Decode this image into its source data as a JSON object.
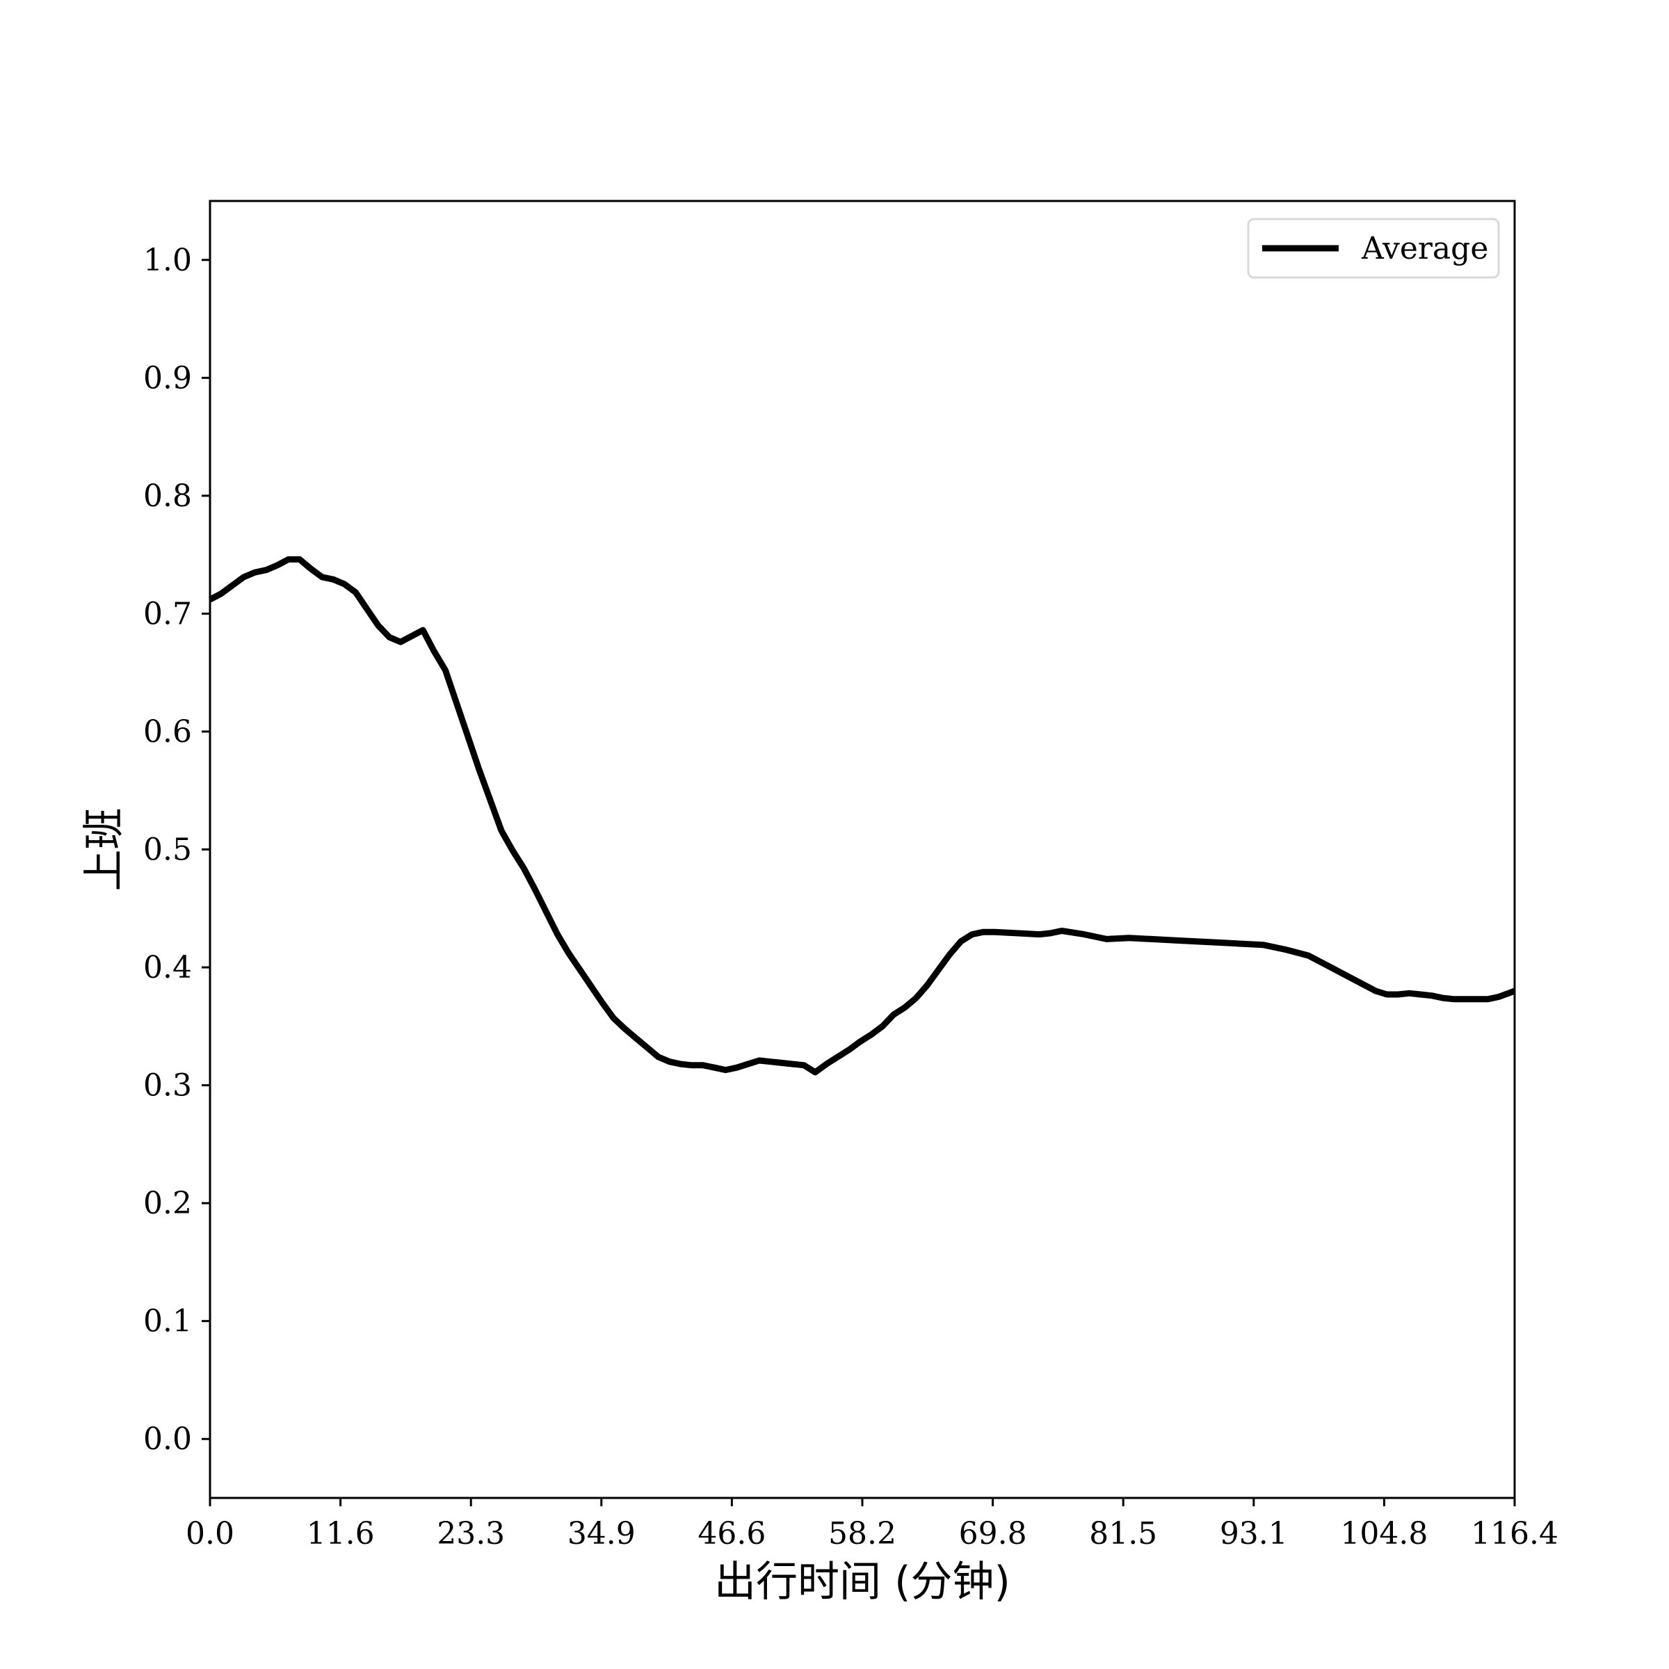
{
  "chart_data": {
    "type": "line",
    "title": "",
    "xlabel": "出行时间 (分钟)",
    "ylabel": "上班",
    "xlim": [
      0.0,
      116.4
    ],
    "ylim": [
      -0.05,
      1.05
    ],
    "xticks": [
      "0.0",
      "11.6",
      "23.3",
      "34.9",
      "46.6",
      "58.2",
      "69.8",
      "81.5",
      "93.1",
      "104.8",
      "116.4"
    ],
    "xtick_values": [
      0.0,
      11.64,
      23.28,
      34.92,
      46.56,
      58.2,
      69.84,
      81.48,
      93.12,
      104.76,
      116.4
    ],
    "yticks": [
      "0.0",
      "0.1",
      "0.2",
      "0.3",
      "0.4",
      "0.5",
      "0.6",
      "0.7",
      "0.8",
      "0.9",
      "1.0"
    ],
    "ytick_values": [
      0.0,
      0.1,
      0.2,
      0.3,
      0.4,
      0.5,
      0.6,
      0.7,
      0.8,
      0.9,
      1.0
    ],
    "grid": false,
    "legend": {
      "position": "top-right"
    },
    "series": [
      {
        "name": "Average",
        "color": "#000000",
        "x": [
          0.0,
          1.0,
          2.0,
          3.0,
          4.0,
          5.0,
          6.0,
          7.0,
          8.0,
          9.0,
          10.0,
          11.0,
          12.0,
          13.0,
          14.0,
          15.0,
          16.0,
          17.0,
          18.0,
          19.0,
          20.0,
          21.0,
          22.0,
          23.0,
          24.0,
          25.0,
          26.0,
          27.0,
          28.0,
          29.0,
          30.0,
          31.0,
          32.0,
          33.0,
          34.0,
          35.0,
          36.0,
          37.0,
          38.0,
          39.0,
          40.0,
          41.0,
          42.0,
          43.0,
          44.0,
          45.0,
          46.0,
          47.0,
          48.0,
          49.0,
          50.0,
          51.0,
          52.0,
          53.0,
          54.0,
          55.0,
          56.0,
          57.0,
          58.0,
          59.0,
          60.0,
          61.0,
          62.0,
          63.0,
          64.0,
          65.0,
          66.0,
          67.0,
          68.0,
          69.0,
          70.0,
          72.0,
          74.0,
          75.0,
          76.0,
          78.0,
          80.0,
          82.0,
          84.0,
          86.0,
          88.0,
          90.0,
          92.0,
          94.0,
          96.0,
          98.0,
          100.0,
          102.0,
          104.0,
          105.0,
          106.0,
          107.0,
          108.0,
          109.0,
          110.0,
          111.0,
          112.0,
          113.0,
          114.0,
          115.0,
          116.4
        ],
        "y": [
          0.712,
          0.717,
          0.724,
          0.731,
          0.735,
          0.737,
          0.741,
          0.746,
          0.746,
          0.738,
          0.731,
          0.729,
          0.725,
          0.718,
          0.704,
          0.69,
          0.68,
          0.676,
          0.681,
          0.686,
          0.668,
          0.652,
          0.624,
          0.596,
          0.568,
          0.542,
          0.516,
          0.499,
          0.484,
          0.466,
          0.447,
          0.428,
          0.412,
          0.398,
          0.384,
          0.37,
          0.357,
          0.348,
          0.34,
          0.332,
          0.324,
          0.32,
          0.318,
          0.317,
          0.317,
          0.315,
          0.313,
          0.315,
          0.318,
          0.321,
          0.32,
          0.319,
          0.318,
          0.317,
          0.311,
          0.318,
          0.324,
          0.33,
          0.337,
          0.343,
          0.35,
          0.36,
          0.366,
          0.374,
          0.385,
          0.398,
          0.411,
          0.422,
          0.428,
          0.43,
          0.43,
          0.429,
          0.428,
          0.429,
          0.431,
          0.428,
          0.424,
          0.425,
          0.424,
          0.423,
          0.422,
          0.421,
          0.42,
          0.419,
          0.415,
          0.41,
          0.4,
          0.39,
          0.38,
          0.377,
          0.377,
          0.378,
          0.377,
          0.376,
          0.374,
          0.373,
          0.373,
          0.373,
          0.373,
          0.375,
          0.38
        ]
      }
    ]
  }
}
